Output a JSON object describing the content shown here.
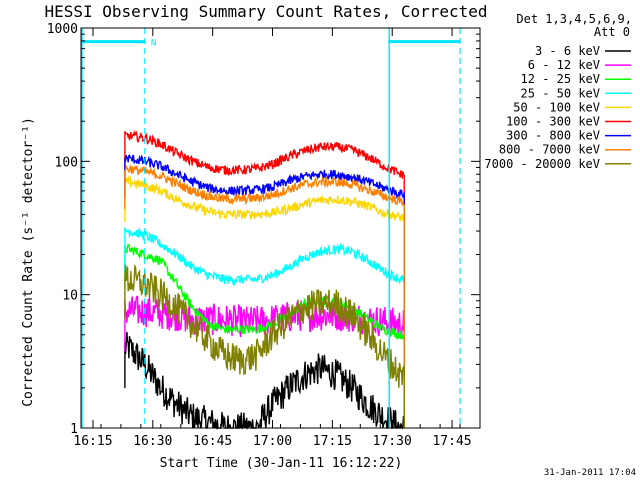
{
  "chart_data": {
    "type": "line",
    "title": "HESSI Observing Summary Count Rates, Corrected",
    "xlabel": "Start Time (30-Jan-11 16:12:22)",
    "ylabel": "Corrected Count Rate (s⁻¹ detector⁻¹)",
    "y_scale": "log",
    "xlim_minutes_since_1612": [
      0,
      100
    ],
    "ylim": [
      1,
      1000
    ],
    "x_ticks": [
      "16:15",
      "16:30",
      "16:45",
      "17:00",
      "17:15",
      "17:30",
      "17:45"
    ],
    "x_tick_minutes": [
      3,
      18,
      33,
      48,
      63,
      78,
      93
    ],
    "y_ticks": [
      "1",
      "10",
      "100",
      "1000"
    ],
    "y_tick_values": [
      1,
      10,
      100,
      1000
    ],
    "legend_header": [
      "Det 1,3,4,5,6,9,",
      "Att 0"
    ],
    "legend_position": "top-right",
    "attenuator_flag": "N",
    "footer_date": "31-Jan-2011 17:04",
    "series": [
      {
        "name": "3 - 6 keV",
        "color": "#000000",
        "x": [
          12,
          16,
          20,
          24,
          28,
          32,
          36,
          40,
          44,
          48,
          52,
          56,
          60,
          64,
          68,
          72,
          76,
          80
        ],
        "values": [
          4,
          3,
          2,
          1.5,
          1.2,
          1.1,
          1,
          1,
          1,
          1.5,
          2,
          2.5,
          2.8,
          2.5,
          2,
          1.5,
          1.2,
          1
        ]
      },
      {
        "name": "6 - 12 keV",
        "color": "#ff00ff",
        "x": [
          12,
          16,
          20,
          24,
          28,
          32,
          36,
          40,
          44,
          48,
          52,
          56,
          60,
          64,
          68,
          72,
          76,
          80
        ],
        "values": [
          7.5,
          7.5,
          7.2,
          7,
          6.5,
          6.5,
          6.5,
          6.3,
          6.3,
          6.5,
          6.8,
          7,
          7,
          7,
          6.8,
          6.5,
          6.3,
          6
        ]
      },
      {
        "name": "12 - 25 keV",
        "color": "#00ff00",
        "x": [
          12,
          16,
          20,
          24,
          28,
          32,
          36,
          40,
          44,
          48,
          52,
          56,
          60,
          64,
          68,
          72,
          76,
          80
        ],
        "values": [
          22,
          20,
          18,
          12,
          8,
          6,
          5.5,
          5.5,
          5.5,
          6,
          7,
          8.5,
          9,
          9,
          8,
          6.5,
          5.5,
          5
        ]
      },
      {
        "name": "25 - 50 keV",
        "color": "#00ffff",
        "x": [
          12,
          16,
          20,
          24,
          28,
          32,
          36,
          40,
          44,
          48,
          52,
          56,
          60,
          64,
          68,
          72,
          76,
          80
        ],
        "values": [
          30,
          28,
          24,
          20,
          16,
          14,
          13,
          13,
          13,
          14,
          16,
          19,
          21,
          22,
          21,
          18,
          15,
          13
        ]
      },
      {
        "name": "50 - 100 keV",
        "color": "#ffd700",
        "x": [
          12,
          16,
          20,
          24,
          28,
          32,
          36,
          40,
          44,
          48,
          52,
          56,
          60,
          64,
          68,
          72,
          76,
          80
        ],
        "values": [
          70,
          66,
          60,
          52,
          46,
          42,
          40,
          40,
          40,
          41,
          44,
          48,
          51,
          52,
          50,
          46,
          41,
          38
        ]
      },
      {
        "name": "100 - 300 keV",
        "color": "#ff0000",
        "x": [
          12,
          16,
          20,
          24,
          28,
          32,
          36,
          40,
          44,
          48,
          52,
          56,
          60,
          64,
          68,
          72,
          76,
          80
        ],
        "values": [
          155,
          150,
          135,
          115,
          100,
          90,
          86,
          86,
          88,
          95,
          108,
          120,
          128,
          128,
          122,
          108,
          92,
          80
        ]
      },
      {
        "name": "300 - 800 keV",
        "color": "#0000ff",
        "x": [
          12,
          16,
          20,
          24,
          28,
          32,
          36,
          40,
          44,
          48,
          52,
          56,
          60,
          64,
          68,
          72,
          76,
          80
        ],
        "values": [
          105,
          100,
          92,
          80,
          70,
          63,
          60,
          60,
          61,
          64,
          71,
          77,
          80,
          80,
          76,
          70,
          63,
          57
        ]
      },
      {
        "name": "800 - 7000 keV",
        "color": "#ff8000",
        "x": [
          12,
          16,
          20,
          24,
          28,
          32,
          36,
          40,
          44,
          48,
          52,
          56,
          60,
          64,
          68,
          72,
          76,
          80
        ],
        "values": [
          88,
          84,
          78,
          68,
          60,
          55,
          52,
          52,
          53,
          56,
          62,
          67,
          70,
          70,
          67,
          61,
          55,
          50
        ]
      },
      {
        "name": "7000 - 20000 keV",
        "color": "#808000",
        "x": [
          12,
          16,
          20,
          24,
          28,
          32,
          36,
          40,
          44,
          48,
          52,
          56,
          60,
          64,
          68,
          72,
          76,
          80
        ],
        "values": [
          13,
          12,
          10,
          8,
          6,
          4.5,
          3.5,
          3.2,
          3.5,
          5,
          6.5,
          8,
          8.5,
          8.5,
          7,
          5,
          3.5,
          2.5
        ]
      }
    ],
    "vlines_cyan_solid_minutes": [
      0,
      77
    ],
    "vlines_cyan_dashed_minutes": [
      16,
      95
    ],
    "cyan_bars_minutes": [
      [
        0,
        16
      ],
      [
        77,
        95
      ]
    ],
    "cyan_bar_value": 790,
    "data_span_minutes": [
      11,
      81
    ]
  },
  "colors": {
    "cyan": "#00e5ff"
  }
}
